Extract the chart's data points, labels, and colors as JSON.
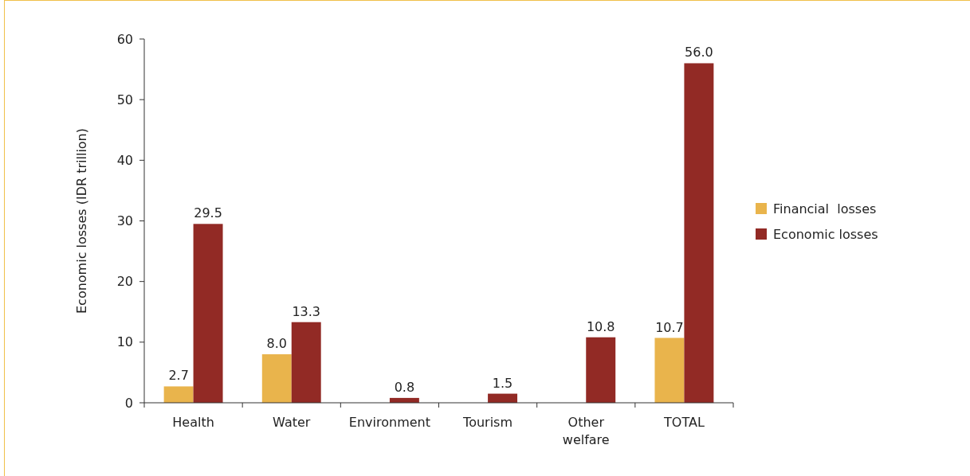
{
  "chart_data": {
    "type": "bar",
    "ylabel": "Economic losses (IDR trillion)",
    "categories": [
      "Health",
      "Water",
      "Environment",
      "Tourism",
      "Other welfare",
      "TOTAL"
    ],
    "series": [
      {
        "name": "Financial  losses",
        "color": "#e9b44c",
        "values": [
          2.7,
          8.0,
          null,
          null,
          null,
          10.7
        ],
        "value_labels": [
          "2.7",
          "8.0",
          null,
          null,
          null,
          "10.7"
        ]
      },
      {
        "name": "Economic losses",
        "color": "#922a25",
        "values": [
          29.5,
          13.3,
          0.8,
          1.5,
          10.8,
          56.0
        ],
        "value_labels": [
          "29.5",
          "13.3",
          "0.8",
          "1.5",
          "10.8",
          "56.0"
        ]
      }
    ],
    "ylim": [
      0,
      60
    ],
    "yticks": [
      0,
      10,
      20,
      30,
      40,
      50,
      60
    ],
    "grid": false,
    "legend": "right"
  }
}
